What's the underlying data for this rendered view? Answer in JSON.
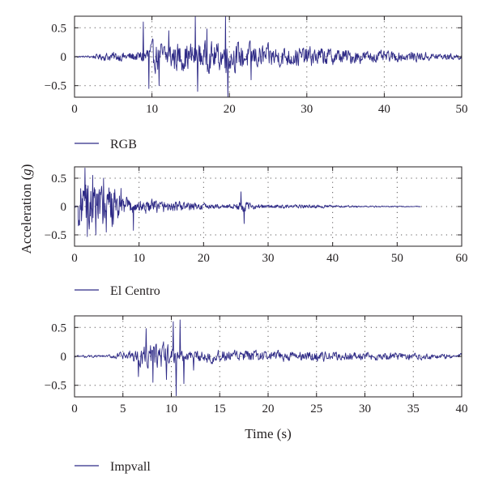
{
  "colors": {
    "series": "#2e2a86",
    "axis": "#231f20"
  },
  "ylabel": "Acceleration (",
  "ylabel_italic": "g",
  "ylabel_close": ")",
  "chart_data": [
    {
      "type": "line",
      "series": [
        {
          "name": "RGB",
          "duration": 50,
          "peak": 0.72,
          "envelope": "strong phase 9-21 s, long decaying coda"
        }
      ],
      "xlabel": "",
      "xlim": [
        0,
        50
      ],
      "ylim": [
        -0.7,
        0.7
      ],
      "xticks": [
        0,
        10,
        20,
        30,
        40,
        50
      ],
      "yticks": [
        0.5,
        0,
        -0.5
      ],
      "ytick_labels": [
        "0.5",
        "0",
        "−0.5"
      ],
      "grid": true,
      "legend": "below-left"
    },
    {
      "type": "line",
      "series": [
        {
          "name": "El Centro",
          "duration": 53.7,
          "peak": 0.68,
          "envelope": "strong phase 1-6 s, secondary burst 25-27 s"
        }
      ],
      "xlabel": "",
      "xlim": [
        0,
        60
      ],
      "ylim": [
        -0.7,
        0.7
      ],
      "xticks": [
        0,
        10,
        20,
        30,
        40,
        50,
        60
      ],
      "yticks": [
        0.5,
        0,
        -0.5
      ],
      "ytick_labels": [
        "0.5",
        "0",
        "−0.5"
      ],
      "grid": true,
      "legend": "below-left"
    },
    {
      "type": "line",
      "series": [
        {
          "name": "Impvall",
          "duration": 40,
          "peak": 0.68,
          "envelope": "strong phase 5-12 s, decaying coda to 39 s"
        }
      ],
      "xlabel": "Time (s)",
      "xlim": [
        0,
        40
      ],
      "ylim": [
        -0.7,
        0.7
      ],
      "xticks": [
        0,
        5,
        10,
        15,
        20,
        25,
        30,
        35,
        40
      ],
      "yticks": [
        0.5,
        0,
        -0.5
      ],
      "ytick_labels": [
        "0.5",
        "0",
        "−0.5"
      ],
      "grid": true,
      "legend": "below-left"
    }
  ]
}
